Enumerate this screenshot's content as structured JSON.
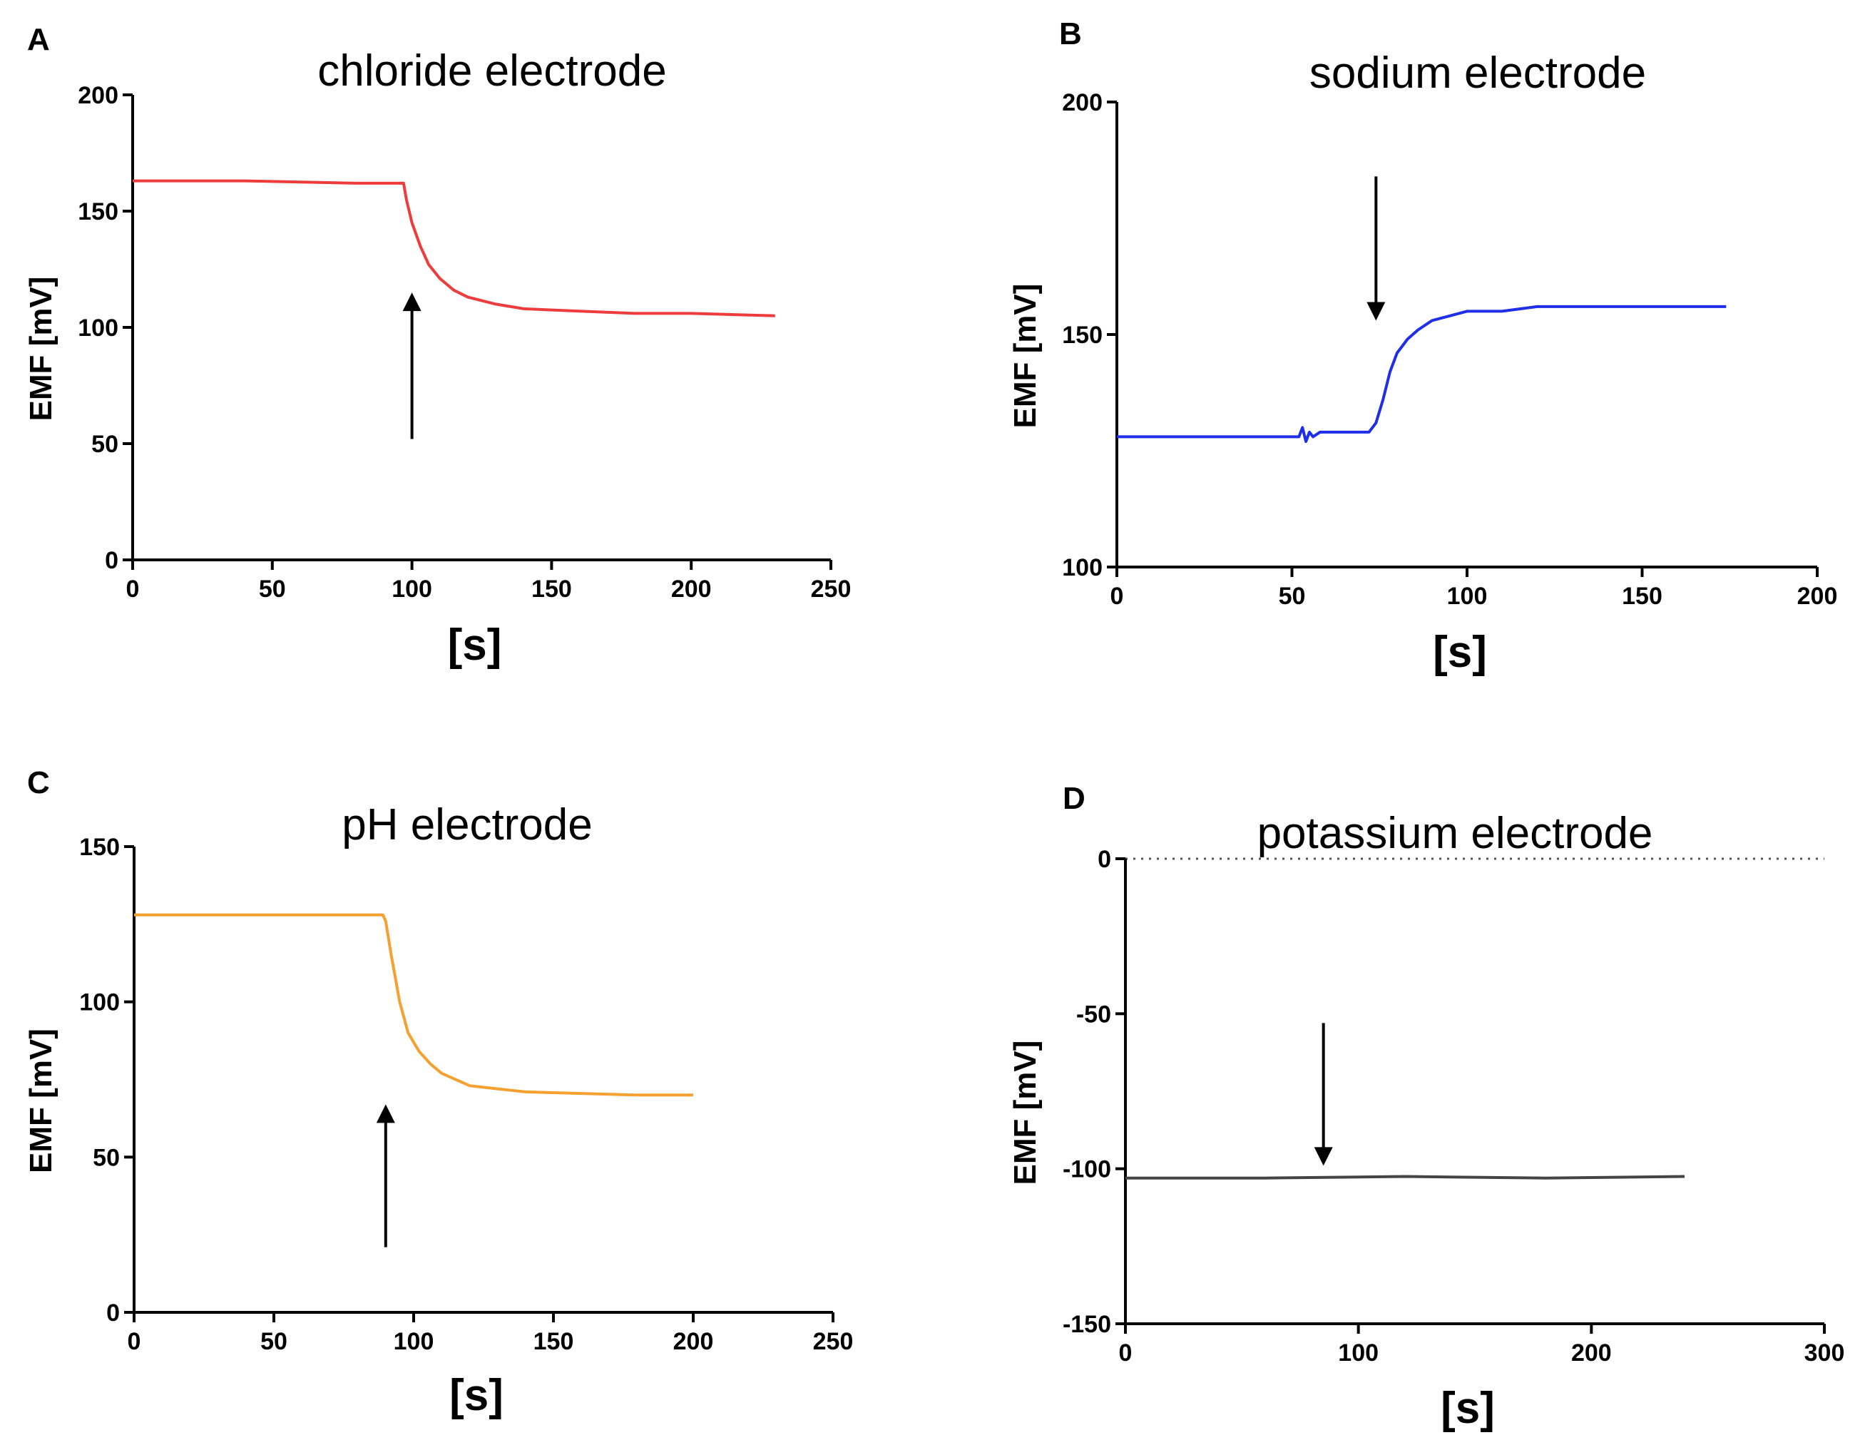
{
  "chart_data": [
    {
      "id": "A",
      "type": "line",
      "panel_label": "A",
      "title": "chloride electrode",
      "xlabel": "[s]",
      "ylabel": "EMF [mV]",
      "xlim": [
        0,
        250
      ],
      "ylim": [
        0,
        200
      ],
      "xticks": [
        0,
        50,
        100,
        150,
        200,
        250
      ],
      "yticks": [
        0,
        50,
        100,
        150,
        200
      ],
      "xtick_labels": [
        "0",
        "50",
        "100",
        "150",
        "200",
        "250"
      ],
      "ytick_labels": [
        "0",
        "50",
        "100",
        "150",
        "200"
      ],
      "line_color": "#ee3b3b",
      "series": [
        {
          "name": "chloride",
          "x": [
            0,
            40,
            80,
            97,
            98,
            100,
            103,
            106,
            110,
            115,
            120,
            130,
            140,
            160,
            180,
            200,
            230
          ],
          "y": [
            163,
            163,
            162,
            162,
            155,
            145,
            135,
            127,
            121,
            116,
            113,
            110,
            108,
            107,
            106,
            106,
            105
          ]
        }
      ],
      "arrow": {
        "x": 100,
        "y_from": 52,
        "y_to": 115,
        "direction": "up"
      },
      "zero_line": false
    },
    {
      "id": "B",
      "type": "line",
      "panel_label": "B",
      "title": "sodium electrode",
      "xlabel": "[s]",
      "ylabel": "EMF [mV]",
      "xlim": [
        0,
        200
      ],
      "ylim": [
        100,
        200
      ],
      "xticks": [
        0,
        50,
        100,
        150,
        200
      ],
      "yticks": [
        100,
        150,
        200
      ],
      "xtick_labels": [
        "0",
        "50",
        "100",
        "150",
        "200"
      ],
      "ytick_labels": [
        "100",
        "150",
        "200"
      ],
      "line_color": "#1f2ee8",
      "series": [
        {
          "name": "sodium",
          "x": [
            0,
            50,
            52,
            53,
            54,
            55,
            56,
            58,
            60,
            65,
            72,
            74,
            76,
            78,
            80,
            83,
            86,
            90,
            95,
            100,
            110,
            120,
            140,
            160,
            174
          ],
          "y": [
            128,
            128,
            128,
            130,
            127,
            129,
            128,
            129,
            129,
            129,
            129,
            131,
            136,
            142,
            146,
            149,
            151,
            153,
            154,
            155,
            155,
            156,
            156,
            156,
            156
          ]
        }
      ],
      "arrow": {
        "x": 74,
        "y_from": 184,
        "y_to": 153,
        "direction": "down"
      },
      "zero_line": false
    },
    {
      "id": "C",
      "type": "line",
      "panel_label": "C",
      "title": "pH electrode",
      "xlabel": "[s]",
      "ylabel": "EMF [mV]",
      "xlim": [
        0,
        250
      ],
      "ylim": [
        0,
        150
      ],
      "xticks": [
        0,
        50,
        100,
        150,
        200,
        250
      ],
      "yticks": [
        0,
        50,
        100,
        150
      ],
      "xtick_labels": [
        "0",
        "50",
        "100",
        "150",
        "200",
        "250"
      ],
      "ytick_labels": [
        "0",
        "50",
        "100",
        "150"
      ],
      "line_color": "#f5a030",
      "series": [
        {
          "name": "pH",
          "x": [
            0,
            40,
            80,
            89,
            90,
            92,
            95,
            98,
            102,
            106,
            110,
            115,
            120,
            130,
            140,
            160,
            180,
            200
          ],
          "y": [
            128,
            128,
            128,
            128,
            126,
            115,
            100,
            90,
            84,
            80,
            77,
            75,
            73,
            72,
            71,
            70.5,
            70,
            70
          ]
        }
      ],
      "arrow": {
        "x": 90,
        "y_from": 21,
        "y_to": 67,
        "direction": "up"
      },
      "zero_line": false
    },
    {
      "id": "D",
      "type": "line",
      "panel_label": "D",
      "title": "potassium electrode",
      "xlabel": "[s]",
      "ylabel": "EMF [mV]",
      "xlim": [
        0,
        300
      ],
      "ylim": [
        -150,
        0
      ],
      "xticks": [
        0,
        100,
        200,
        300
      ],
      "yticks": [
        -150,
        -100,
        -50,
        0
      ],
      "xtick_labels": [
        "0",
        "100",
        "200",
        "300"
      ],
      "ytick_labels": [
        "-150",
        "-100",
        "-50",
        "0"
      ],
      "line_color": "#444444",
      "series": [
        {
          "name": "potassium",
          "x": [
            0,
            60,
            120,
            180,
            240
          ],
          "y": [
            -103,
            -103,
            -102.5,
            -103,
            -102.5
          ]
        }
      ],
      "arrow": {
        "x": 85,
        "y_from": -53,
        "y_to": -99,
        "direction": "down"
      },
      "zero_line": true
    }
  ]
}
